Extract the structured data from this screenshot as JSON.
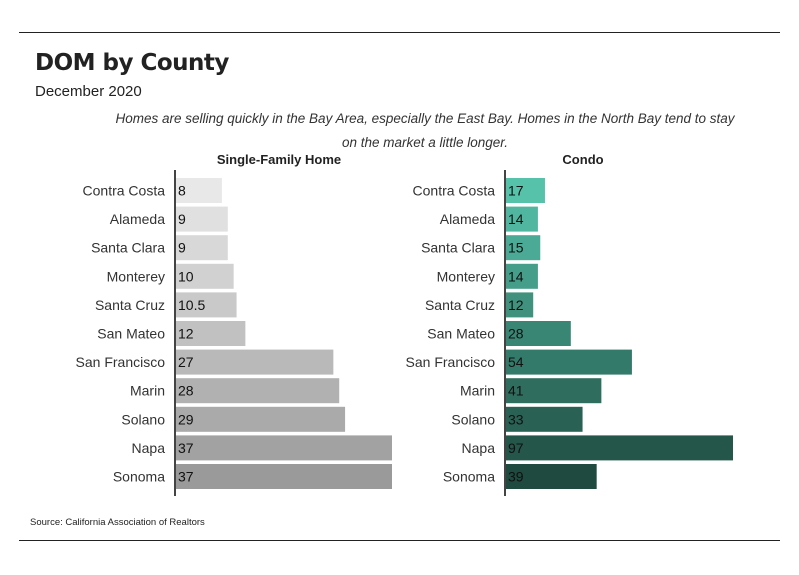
{
  "header": {
    "title": "DOM by County",
    "subtitle": "December 2020",
    "note": "Homes are selling quickly in the Bay Area, especially the East Bay. Homes in the North Bay tend to stay on the market a little longer."
  },
  "footer": {
    "source": "Source:  California Association of Realtors"
  },
  "chart_data": [
    {
      "type": "bar",
      "orientation": "horizontal",
      "title": "Single-Family Home",
      "categories": [
        "Contra Costa",
        "Alameda",
        "Santa Clara",
        "Monterey",
        "Santa Cruz",
        "San Mateo",
        "San Francisco",
        "Marin",
        "Solano",
        "Napa",
        "Sonoma"
      ],
      "values": [
        8,
        9,
        9,
        10,
        10.5,
        12,
        27,
        28,
        29,
        37,
        37
      ],
      "data_labels": [
        "8",
        "9",
        "9",
        "10",
        "10.5",
        "12",
        "27",
        "28",
        "29",
        "37",
        "37"
      ],
      "color_light": "#e8e8e8",
      "color_dark": "#9a9a9a",
      "xlim": [
        0,
        37
      ]
    },
    {
      "type": "bar",
      "orientation": "horizontal",
      "title": "Condo",
      "categories": [
        "Contra Costa",
        "Alameda",
        "Santa Clara",
        "Monterey",
        "Santa Cruz",
        "San Mateo",
        "San Francisco",
        "Marin",
        "Solano",
        "Napa",
        "Sonoma"
      ],
      "values": [
        17,
        14,
        15,
        14,
        12,
        28,
        54,
        41,
        33,
        97,
        39
      ],
      "data_labels": [
        "17",
        "14",
        "15",
        "14",
        "12",
        "28",
        "54",
        "41",
        "33",
        "97",
        "39"
      ],
      "color_light": "#56c2aa",
      "color_dark": "#1e4a3f",
      "xlim": [
        0,
        97
      ]
    }
  ]
}
